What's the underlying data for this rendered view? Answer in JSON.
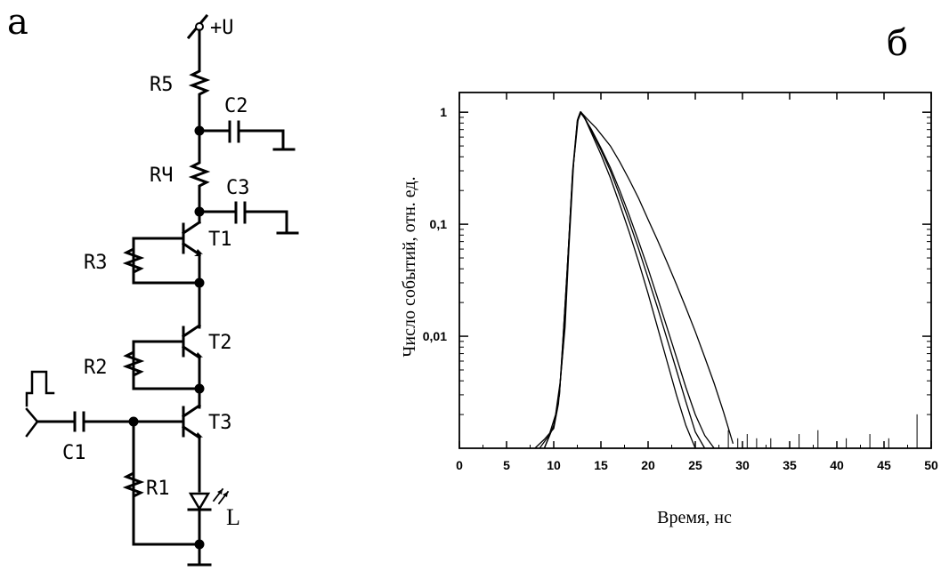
{
  "panels": {
    "left_label": "а",
    "right_label": "б"
  },
  "circuit": {
    "supply": "+U",
    "resistors": [
      "R5",
      "RЧ",
      "R3",
      "R2",
      "R1"
    ],
    "capacitors": [
      "C2",
      "C3",
      "C1"
    ],
    "transistors": [
      "T1",
      "T2",
      "T3"
    ],
    "led": "L"
  },
  "chart_data": {
    "type": "line",
    "ylabel": "Число событий, отн. ед.",
    "xlabel": "Время, нс",
    "xlim": [
      0,
      50
    ],
    "xticks": [
      "0",
      "5",
      "10",
      "15",
      "20",
      "25",
      "30",
      "35",
      "40",
      "45",
      "50"
    ],
    "ylim": [
      0.001,
      1.5
    ],
    "yscale": "log",
    "yticks": [
      "1",
      "0,1",
      "0,01"
    ],
    "series": [
      {
        "x": [
          8,
          9,
          10,
          10.5,
          11,
          11.5,
          12,
          12.5,
          12.8,
          13.2,
          14,
          15,
          16,
          17,
          18,
          19,
          20,
          21,
          22,
          23,
          24,
          25,
          26,
          27
        ],
        "y": [
          0.001,
          0.0012,
          0.0015,
          0.0025,
          0.008,
          0.05,
          0.3,
          0.85,
          1.0,
          0.9,
          0.7,
          0.48,
          0.32,
          0.2,
          0.12,
          0.07,
          0.04,
          0.022,
          0.012,
          0.0065,
          0.0035,
          0.002,
          0.0013,
          0.001
        ]
      },
      {
        "x": [
          8.5,
          9.5,
          10.2,
          10.7,
          11.2,
          11.6,
          12.1,
          12.6,
          12.9,
          13.3,
          14,
          15,
          16,
          17,
          18,
          19,
          20,
          21,
          22,
          23,
          24,
          25
        ],
        "y": [
          0.001,
          0.0013,
          0.002,
          0.004,
          0.012,
          0.06,
          0.35,
          0.9,
          1.0,
          0.88,
          0.65,
          0.42,
          0.26,
          0.15,
          0.085,
          0.046,
          0.024,
          0.012,
          0.006,
          0.003,
          0.0016,
          0.001
        ]
      },
      {
        "x": [
          9,
          10,
          10.6,
          11,
          11.5,
          12,
          12.5,
          12.9,
          13.4,
          14,
          15,
          16,
          17,
          18,
          19,
          20,
          21,
          22,
          23,
          24,
          25,
          26
        ],
        "y": [
          0.001,
          0.0016,
          0.003,
          0.01,
          0.05,
          0.28,
          0.82,
          1.0,
          0.86,
          0.68,
          0.46,
          0.3,
          0.18,
          0.105,
          0.06,
          0.033,
          0.018,
          0.0095,
          0.005,
          0.0026,
          0.0014,
          0.001
        ]
      },
      {
        "x": [
          9,
          10,
          10.6,
          11,
          11.5,
          12,
          12.5,
          12.9,
          13.5,
          14.5,
          16,
          17,
          18,
          19,
          20,
          21,
          22,
          23,
          24,
          25,
          26,
          27,
          28,
          29
        ],
        "y": [
          0.001,
          0.0016,
          0.003,
          0.01,
          0.05,
          0.28,
          0.82,
          1.0,
          0.88,
          0.72,
          0.5,
          0.36,
          0.25,
          0.17,
          0.11,
          0.072,
          0.046,
          0.029,
          0.018,
          0.011,
          0.0065,
          0.0038,
          0.0021,
          0.0011
        ]
      }
    ],
    "noise_spikes": [
      {
        "x": 30.5,
        "y": 0.0012
      },
      {
        "x": 31.5,
        "y": 0.0011
      },
      {
        "x": 33,
        "y": 0.0011
      },
      {
        "x": 36,
        "y": 0.0012
      },
      {
        "x": 38,
        "y": 0.0013
      },
      {
        "x": 41,
        "y": 0.0011
      },
      {
        "x": 43.5,
        "y": 0.0012
      },
      {
        "x": 45.5,
        "y": 0.0011
      },
      {
        "x": 48.5,
        "y": 0.0018
      },
      {
        "x": 28.5,
        "y": 0.0013
      },
      {
        "x": 29.5,
        "y": 0.0011
      }
    ]
  }
}
